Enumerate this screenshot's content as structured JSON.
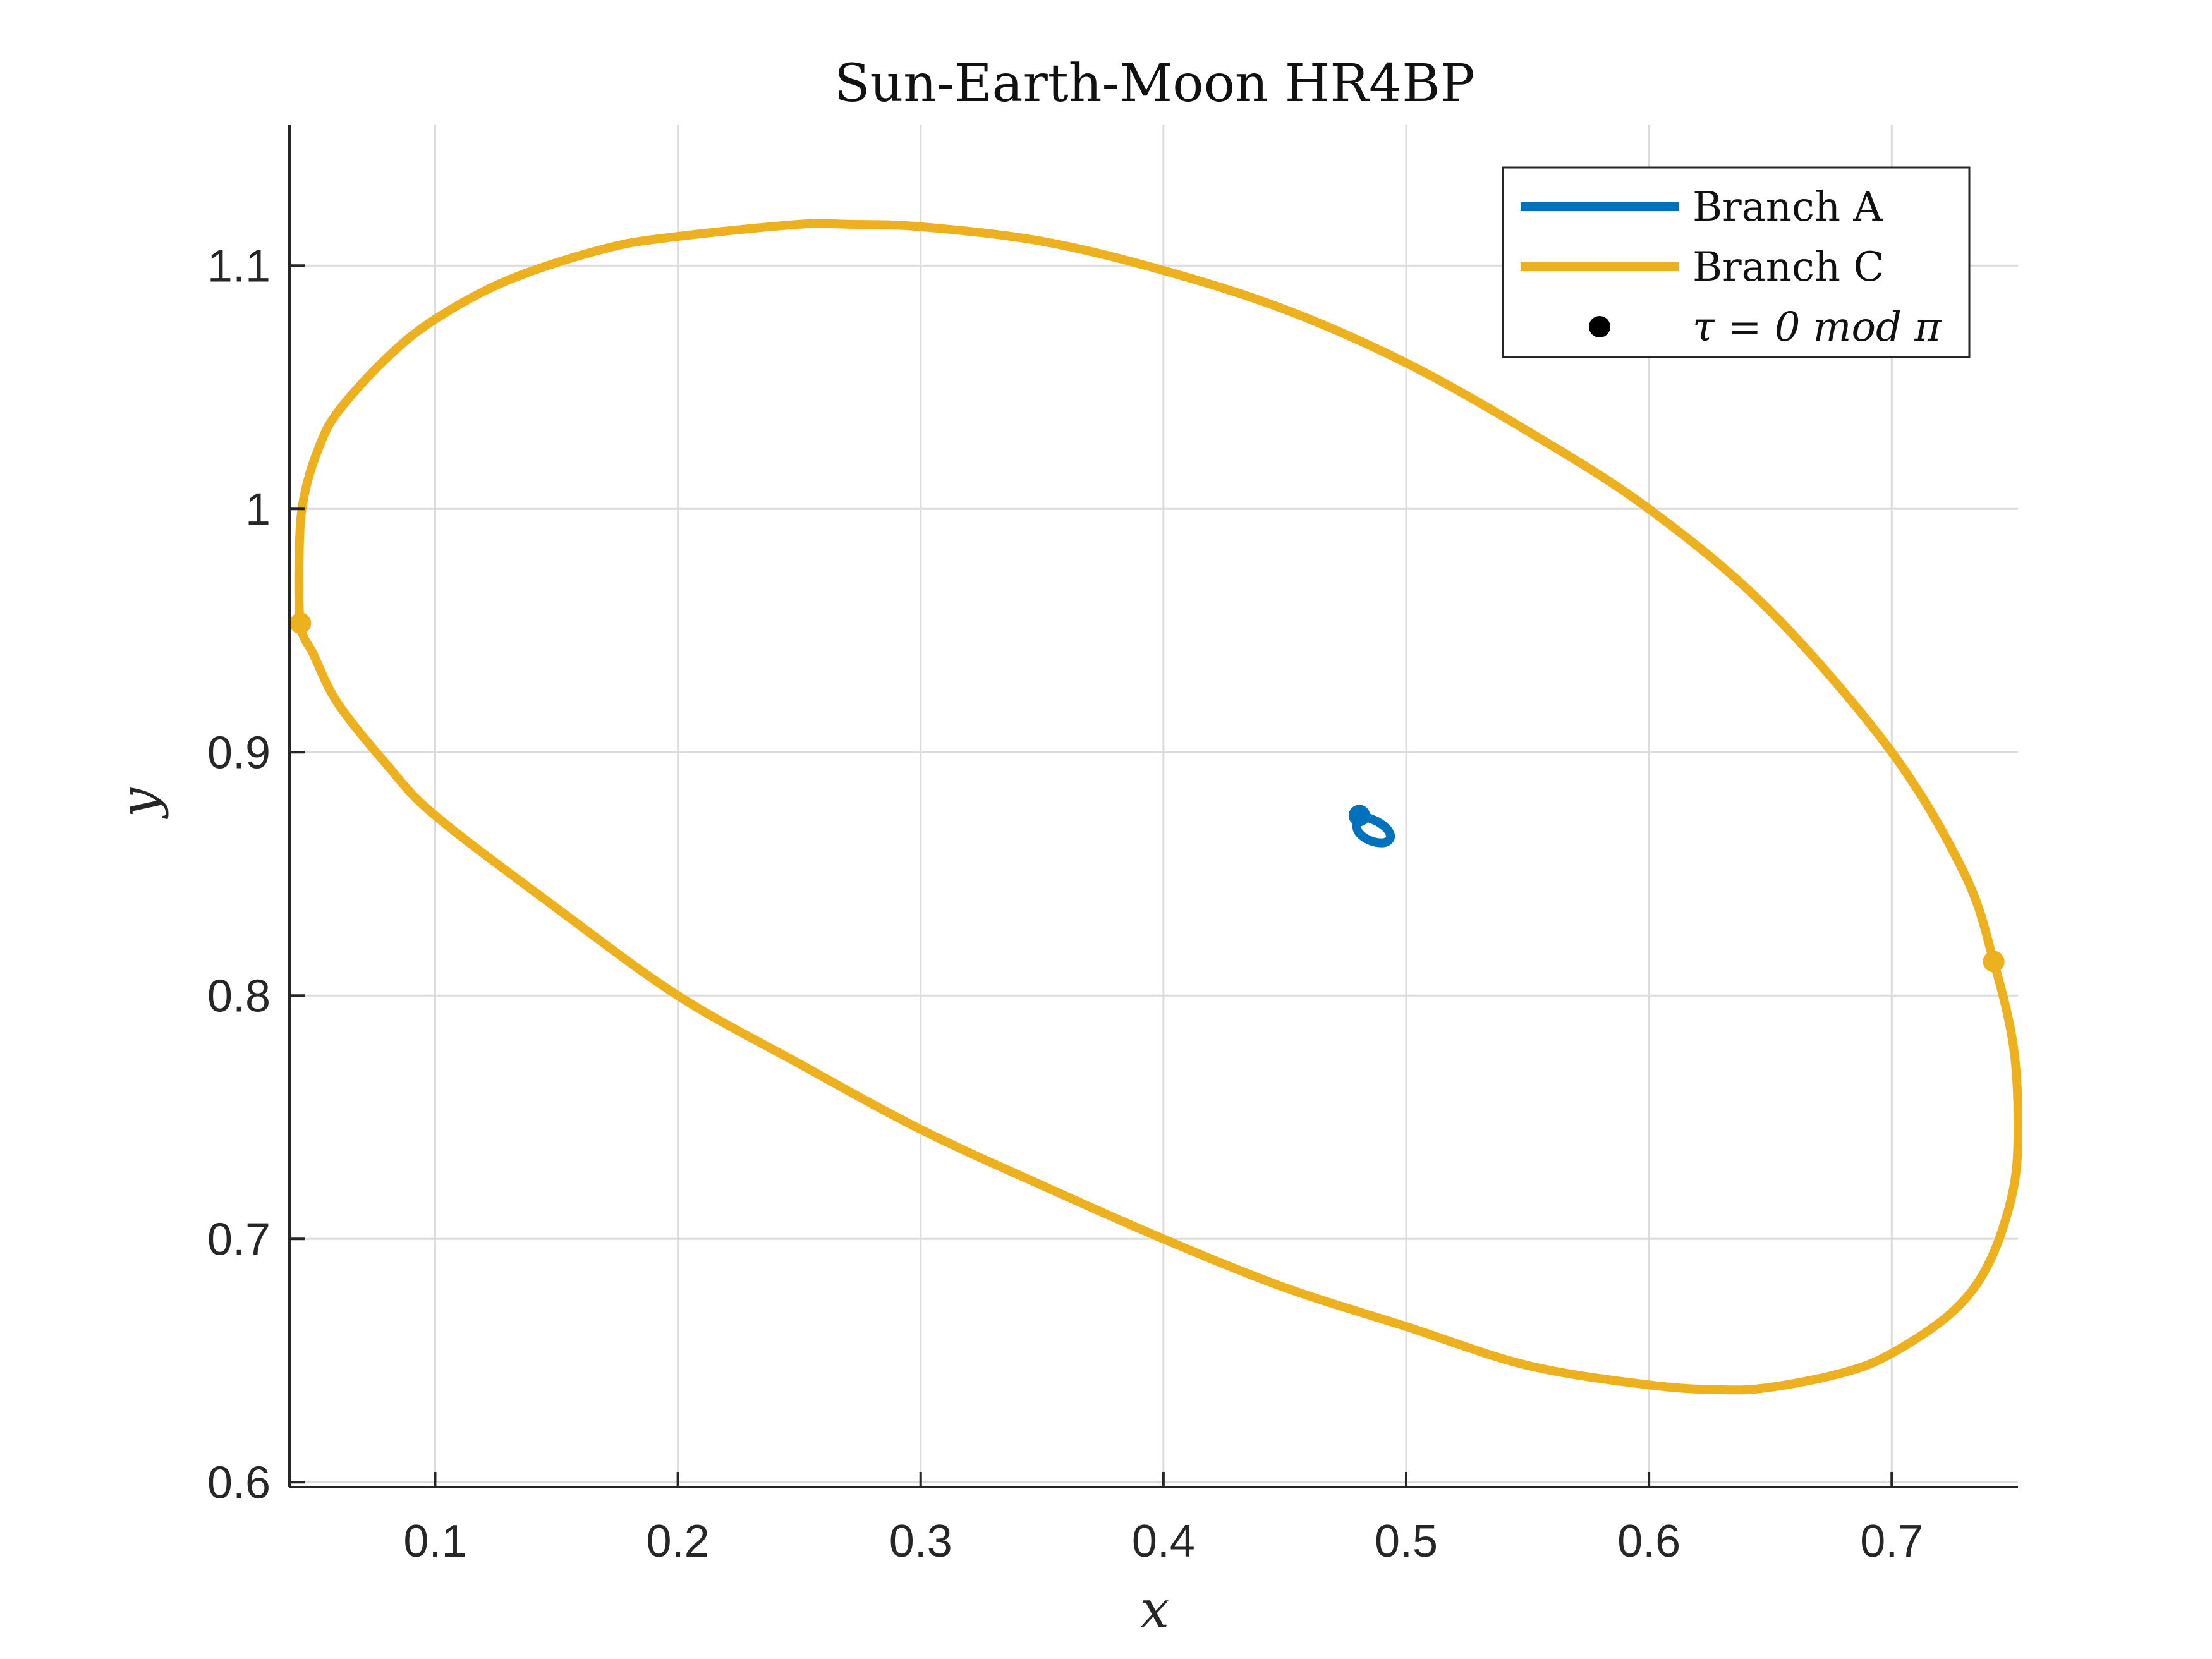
{
  "chart_data": {
    "type": "line",
    "title": "Sun-Earth-Moon HR4BP",
    "xlabel": "x",
    "ylabel": "y",
    "xlim": [
      0.04,
      0.752
    ],
    "ylim": [
      0.598,
      1.158
    ],
    "xticks": [
      0.1,
      0.2,
      0.3,
      0.4,
      0.5,
      0.6,
      0.7
    ],
    "yticks": [
      0.6,
      0.7,
      0.8,
      0.9,
      1.0,
      1.1
    ],
    "xtick_labels": [
      "0.1",
      "0.2",
      "0.3",
      "0.4",
      "0.5",
      "0.6",
      "0.7"
    ],
    "ytick_labels": [
      "0.6",
      "0.7",
      "0.8",
      "0.9",
      "1",
      "1.1"
    ],
    "grid": true,
    "legend_position": "top-right",
    "series": [
      {
        "name": "Branch A",
        "color": "#0072BD",
        "closed": true,
        "x": [
          0.4807,
          0.4845,
          0.489,
          0.4925,
          0.4935,
          0.4915,
          0.4875,
          0.4835,
          0.4805,
          0.4795,
          0.48
        ],
        "y": [
          0.874,
          0.873,
          0.871,
          0.868,
          0.865,
          0.863,
          0.863,
          0.8645,
          0.867,
          0.87,
          0.8725
        ]
      },
      {
        "name": "Branch C",
        "color": "#EDB120",
        "closed": true,
        "x": [
          0.0445,
          0.0441,
          0.046,
          0.052,
          0.06,
          0.08,
          0.1,
          0.13,
          0.17,
          0.2,
          0.25,
          0.27,
          0.3,
          0.35,
          0.4,
          0.45,
          0.5,
          0.55,
          0.6,
          0.65,
          0.7,
          0.73,
          0.742,
          0.75,
          0.752,
          0.75,
          0.74,
          0.725,
          0.7,
          0.68,
          0.65,
          0.63,
          0.6,
          0.55,
          0.5,
          0.45,
          0.4,
          0.35,
          0.3,
          0.25,
          0.2,
          0.15,
          0.1,
          0.08,
          0.06,
          0.05
        ],
        "y": [
          0.953,
          0.985,
          1.005,
          1.025,
          1.04,
          1.062,
          1.078,
          1.094,
          1.107,
          1.112,
          1.117,
          1.117,
          1.116,
          1.11,
          1.098,
          1.082,
          1.06,
          1.032,
          1.0,
          0.958,
          0.9,
          0.85,
          0.814,
          0.78,
          0.748,
          0.72,
          0.69,
          0.67,
          0.653,
          0.645,
          0.639,
          0.638,
          0.64,
          0.648,
          0.664,
          0.68,
          0.7,
          0.722,
          0.745,
          0.772,
          0.8,
          0.836,
          0.874,
          0.895,
          0.92,
          0.94
        ]
      }
    ],
    "markers": {
      "name": "τ = 0 mod π",
      "points": [
        {
          "x": 0.4807,
          "y": 0.874,
          "color": "#0072BD"
        },
        {
          "x": 0.0445,
          "y": 0.953,
          "color": "#EDB120"
        },
        {
          "x": 0.742,
          "y": 0.814,
          "color": "#EDB120"
        }
      ]
    }
  },
  "legend": {
    "items": [
      {
        "label": "Branch A",
        "type": "line",
        "color": "#0072BD"
      },
      {
        "label": "Branch C",
        "type": "line",
        "color": "#EDB120"
      },
      {
        "label": "τ = 0 mod π",
        "type": "marker",
        "color": "#000000"
      }
    ]
  }
}
